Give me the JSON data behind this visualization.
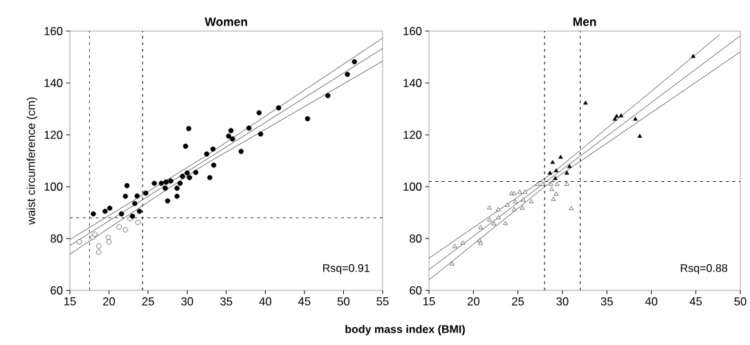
{
  "chart_data": [
    {
      "type": "scatter",
      "title": "Women",
      "xlabel": "body mass index (BMI)",
      "ylabel": "waist circumference (cm)",
      "xlim": [
        15,
        55
      ],
      "ylim": [
        60,
        160
      ],
      "xticks": [
        15,
        20,
        25,
        30,
        35,
        40,
        45,
        50,
        55
      ],
      "yticks": [
        60,
        80,
        100,
        120,
        140,
        160
      ],
      "series": [
        {
          "marker": "circle",
          "color": "#000000",
          "x": [
            18.0,
            19.5,
            20.1,
            21.6,
            22.1,
            22.3,
            23.0,
            23.3,
            23.6,
            23.9,
            24.7,
            25.8,
            26.7,
            27.3,
            27.2,
            27.5,
            27.9,
            28.7,
            28.7,
            29.1,
            29.4,
            29.8,
            30.2,
            30.0,
            30.3,
            31.1,
            32.9,
            33.4,
            32.5,
            33.3,
            35.3,
            35.6,
            35.8,
            36.9,
            37.9,
            39.2,
            39.4,
            41.7,
            45.4,
            48.0,
            50.5,
            51.4
          ],
          "values": [
            89.5,
            90.5,
            91.7,
            89.5,
            96.3,
            100.4,
            88.6,
            93.5,
            96.4,
            90.5,
            97.5,
            101.3,
            101.3,
            101.8,
            99.4,
            94.5,
            102.2,
            99.4,
            96.3,
            101.3,
            104,
            115.6,
            122.4,
            105.3,
            103.5,
            105.5,
            103.5,
            108.3,
            112.6,
            114.5,
            119.5,
            121.6,
            118.4,
            113.6,
            122.6,
            128.5,
            120.3,
            130.4,
            126.2,
            135.1,
            143.3,
            148.2
          ]
        },
        {
          "marker": "circle",
          "color": "#ffffff",
          "x": [
            16.2,
            17.9,
            18.2,
            18.7,
            18.7,
            19.9,
            20.0,
            21.3,
            22.1,
            22.7,
            23.7
          ],
          "values": [
            78.7,
            80.4,
            81.6,
            77.1,
            74.7,
            80.4,
            78.7,
            84.5,
            83.4,
            87.6,
            86.2
          ]
        },
        {
          "type": "line",
          "color": "#333333",
          "x": [
            15,
            55
          ],
          "values": [
            77.3,
            153.3
          ]
        },
        {
          "type": "line",
          "color": "#333333",
          "x": [
            15,
            32,
            55
          ],
          "values": [
            79.6,
            111.1,
            157.3
          ]
        },
        {
          "type": "line",
          "color": "#333333",
          "x": [
            15,
            32,
            55
          ],
          "values": [
            74,
            108.1,
            148.4
          ]
        }
      ],
      "ref_lines": [
        {
          "axis": "x",
          "value": 17.5,
          "line_style": "dashed"
        },
        {
          "axis": "x",
          "value": 24.3,
          "line_style": "dashed"
        },
        {
          "axis": "y",
          "value": 88,
          "line_style": "dashed"
        }
      ],
      "annotations": [
        "Rsq=0.91"
      ]
    },
    {
      "type": "scatter",
      "title": "Men",
      "xlim": [
        15,
        50
      ],
      "ylim": [
        60,
        160
      ],
      "xticks": [
        15,
        20,
        25,
        30,
        35,
        40,
        45,
        50
      ],
      "yticks": [
        60,
        80,
        100,
        120,
        140,
        160
      ],
      "series": [
        {
          "marker": "triangle",
          "color": "#000000",
          "x": [
            28.6,
            28.9,
            29.3,
            29.2,
            29.8,
            30.5,
            30.8,
            32.6,
            35.9,
            36.1,
            36.6,
            38.2,
            38.7,
            44.7
          ],
          "values": [
            105.2,
            109.3,
            106.1,
            103.1,
            111.3,
            105.2,
            107.7,
            132.2,
            126,
            127.1,
            127.3,
            126,
            119.4,
            150.2
          ]
        },
        {
          "marker": "triangle",
          "color": "#ffffff",
          "x": [
            17.6,
            17.9,
            18.8,
            20.7,
            20.8,
            20.8,
            21.8,
            21.8,
            22.3,
            22.8,
            22.8,
            23.6,
            23.8,
            24.3,
            24.6,
            24.6,
            24.7,
            25.2,
            25.5,
            25.6,
            25.8,
            26.5,
            27.2,
            27.8,
            28.7,
            28.8,
            29.0,
            29.3,
            29.4,
            30.5,
            31.0
          ],
          "values": [
            70.2,
            76.9,
            78.2,
            79.1,
            78.1,
            84.2,
            91.8,
            87.1,
            85.6,
            91.1,
            88,
            85.8,
            92.9,
            97.3,
            97.3,
            91.1,
            94.1,
            97.9,
            91.7,
            94.8,
            97.9,
            94.2,
            100.9,
            100.9,
            100.9,
            98.9,
            95.1,
            97.1,
            100.9,
            100.9,
            91.5
          ]
        },
        {
          "type": "line",
          "color": "#333333",
          "x": [
            15,
            50
          ],
          "values": [
            68,
            158.2
          ]
        },
        {
          "type": "line",
          "color": "#333333",
          "x": [
            15,
            29,
            47.7
          ],
          "values": [
            72.4,
            105.5,
            158.7
          ]
        },
        {
          "type": "line",
          "color": "#333333",
          "x": [
            15,
            29,
            50
          ],
          "values": [
            64,
            102.7,
            152
          ]
        }
      ],
      "ref_lines": [
        {
          "axis": "x",
          "value": 28,
          "line_style": "dashed"
        },
        {
          "axis": "x",
          "value": 32,
          "line_style": "dashed"
        },
        {
          "axis": "y",
          "value": 102,
          "line_style": "dashed"
        }
      ],
      "annotations": [
        "Rsq=0.88"
      ]
    }
  ]
}
